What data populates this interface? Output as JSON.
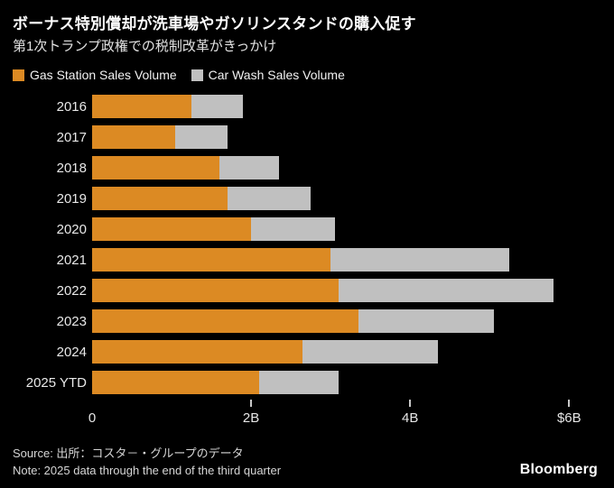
{
  "title": "ボーナス特別償却が洗車場やガソリンスタンドの購入促す",
  "subtitle": "第1次トランプ政権での税制改革がきっかけ",
  "colors": {
    "background": "#000000",
    "gas_station": "#dc8a23",
    "car_wash": "#c0c0c0",
    "text": "#ffffff"
  },
  "legend": [
    {
      "label": "Gas Station Sales Volume",
      "color": "#dc8a23"
    },
    {
      "label": "Car Wash Sales Volume",
      "color": "#c0c0c0"
    }
  ],
  "chart_data": {
    "type": "bar",
    "orientation": "horizontal",
    "stacked": true,
    "categories": [
      "2016",
      "2017",
      "2018",
      "2019",
      "2020",
      "2021",
      "2022",
      "2023",
      "2024",
      "2025 YTD"
    ],
    "series": [
      {
        "name": "Gas Station Sales Volume",
        "color": "#dc8a23",
        "values": [
          1.25,
          1.05,
          1.6,
          1.7,
          2.0,
          3.0,
          3.1,
          3.35,
          2.65,
          2.1
        ]
      },
      {
        "name": "Car Wash Sales Volume",
        "color": "#c0c0c0",
        "values": [
          0.65,
          0.65,
          0.75,
          1.05,
          1.05,
          2.25,
          2.7,
          1.7,
          1.7,
          1.0
        ]
      }
    ],
    "xlabel": "",
    "ylabel": "",
    "x_axis": {
      "max": 6.36,
      "unit": "USD billions",
      "ticks": [
        {
          "value": 0,
          "label": "0"
        },
        {
          "value": 2,
          "label": "2B"
        },
        {
          "value": 4,
          "label": "4B"
        },
        {
          "value": 6,
          "label": "$6B"
        }
      ]
    },
    "grid": false,
    "legend_position": "top"
  },
  "footer": {
    "source": "Source: 出所：コスタ－・グループのデータ",
    "note": "Note: 2025 data through the end of the third quarter",
    "brand": "Bloomberg"
  }
}
